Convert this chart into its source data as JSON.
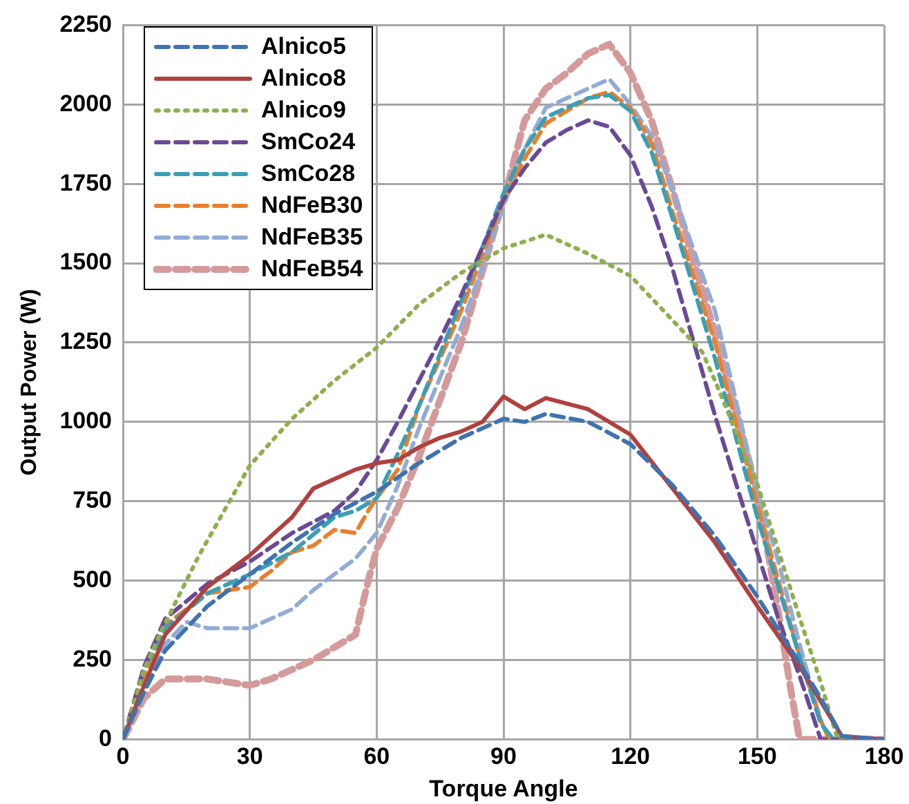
{
  "chart_data": {
    "type": "line",
    "xlabel": "Torque Angle",
    "ylabel": "Output Power (W)",
    "xlim": [
      0,
      180
    ],
    "xticks": [
      0,
      30,
      60,
      90,
      120,
      150,
      180
    ],
    "ylim": [
      0,
      2250
    ],
    "yticks": [
      0,
      250,
      500,
      750,
      1000,
      1250,
      1500,
      1750,
      2000,
      2250
    ],
    "grid": true,
    "legend": "top left",
    "marker": "none",
    "series": [
      {
        "name": "Alnico5",
        "color": "#3f73b0",
        "line_style": "dashed",
        "x": [
          0,
          5,
          10,
          20,
          30,
          40,
          50,
          60,
          70,
          80,
          90,
          95,
          100,
          110,
          120,
          130,
          140,
          150,
          160,
          165,
          170,
          180
        ],
        "values": [
          0,
          150,
          280,
          420,
          520,
          620,
          710,
          780,
          870,
          950,
          1010,
          1000,
          1025,
          1000,
          930,
          800,
          640,
          450,
          240,
          130,
          10,
          0
        ]
      },
      {
        "name": "Alnico8",
        "color": "#b0413e",
        "line_style": "solid",
        "x": [
          0,
          5,
          10,
          20,
          30,
          40,
          45,
          50,
          55,
          60,
          65,
          70,
          75,
          80,
          85,
          90,
          95,
          100,
          110,
          120,
          130,
          140,
          150,
          160,
          170,
          180
        ],
        "values": [
          0,
          170,
          330,
          480,
          580,
          700,
          790,
          820,
          850,
          870,
          880,
          920,
          950,
          970,
          1000,
          1080,
          1040,
          1075,
          1040,
          960,
          790,
          620,
          420,
          230,
          10,
          0
        ]
      },
      {
        "name": "Alnico9",
        "color": "#8db04d",
        "line_style": "dotted",
        "x": [
          0,
          5,
          9,
          18,
          30,
          40,
          50,
          60,
          70,
          80,
          90,
          100,
          110,
          120,
          130,
          137,
          140,
          150,
          160,
          165,
          169,
          180
        ],
        "values": [
          0,
          220,
          340,
          580,
          863,
          1010,
          1130,
          1234,
          1370,
          1470,
          1547,
          1590,
          1530,
          1460,
          1320,
          1220,
          1130,
          805,
          384,
          180,
          0,
          0
        ]
      },
      {
        "name": "SmCo24",
        "color": "#6a4a96",
        "line_style": "dashed",
        "x": [
          0,
          5,
          10,
          20,
          30,
          40,
          50,
          55,
          60,
          65,
          70,
          75,
          80,
          85,
          90,
          95,
          100,
          105,
          110,
          115,
          120,
          125,
          130,
          140,
          150,
          155,
          160,
          165,
          180
        ],
        "values": [
          0,
          230,
          380,
          490,
          560,
          650,
          720,
          780,
          880,
          1000,
          1130,
          1260,
          1400,
          1550,
          1700,
          1800,
          1880,
          1920,
          1950,
          1930,
          1840,
          1680,
          1480,
          1020,
          590,
          380,
          200,
          0,
          0
        ]
      },
      {
        "name": "SmCo28",
        "color": "#3a9fb5",
        "line_style": "dashed",
        "x": [
          0,
          5,
          10,
          20,
          30,
          40,
          50,
          55,
          60,
          65,
          70,
          80,
          90,
          95,
          100,
          110,
          115,
          120,
          125,
          130,
          140,
          150,
          155,
          160,
          165,
          168,
          180
        ],
        "values": [
          0,
          220,
          350,
          460,
          520,
          590,
          700,
          720,
          760,
          900,
          1050,
          1380,
          1720,
          1860,
          1960,
          2020,
          2030,
          1980,
          1850,
          1640,
          1200,
          700,
          480,
          260,
          50,
          0,
          0
        ]
      },
      {
        "name": "NdFeB30",
        "color": "#e8802e",
        "line_style": "dashed",
        "x": [
          0,
          5,
          10,
          20,
          30,
          35,
          40,
          45,
          50,
          55,
          58,
          60,
          65,
          70,
          80,
          90,
          95,
          100,
          110,
          115,
          120,
          125,
          130,
          140,
          150,
          155,
          160,
          165,
          167,
          180
        ],
        "values": [
          0,
          200,
          360,
          460,
          480,
          530,
          590,
          610,
          660,
          650,
          720,
          760,
          850,
          1050,
          1350,
          1700,
          1830,
          1940,
          2020,
          2040,
          1990,
          1880,
          1660,
          1250,
          740,
          500,
          260,
          60,
          0,
          0
        ]
      },
      {
        "name": "NdFeB35",
        "color": "#92acd6",
        "line_style": "dashed",
        "x": [
          0,
          5,
          10,
          15,
          20,
          30,
          40,
          45,
          50,
          55,
          60,
          65,
          70,
          80,
          90,
          95,
          100,
          105,
          110,
          115,
          120,
          125,
          130,
          140,
          150,
          155,
          160,
          165,
          167,
          180
        ],
        "values": [
          0,
          150,
          300,
          370,
          350,
          350,
          410,
          470,
          520,
          570,
          650,
          800,
          980,
          1300,
          1680,
          1860,
          1990,
          2020,
          2050,
          2080,
          2000,
          1900,
          1730,
          1350,
          780,
          560,
          300,
          60,
          0,
          0
        ]
      },
      {
        "name": "NdFeB54",
        "color": "#d49a9a",
        "line_style": "dashed",
        "x": [
          0,
          5,
          10,
          20,
          25,
          30,
          35,
          40,
          45,
          50,
          55,
          58,
          60,
          65,
          70,
          80,
          90,
          95,
          100,
          105,
          110,
          115,
          120,
          125,
          130,
          140,
          150,
          155,
          158,
          160,
          180
        ],
        "values": [
          0,
          130,
          190,
          190,
          180,
          170,
          190,
          220,
          250,
          290,
          330,
          500,
          600,
          730,
          890,
          1250,
          1700,
          1950,
          2050,
          2100,
          2160,
          2190,
          2100,
          1950,
          1730,
          1280,
          780,
          400,
          150,
          0,
          0
        ]
      }
    ]
  }
}
